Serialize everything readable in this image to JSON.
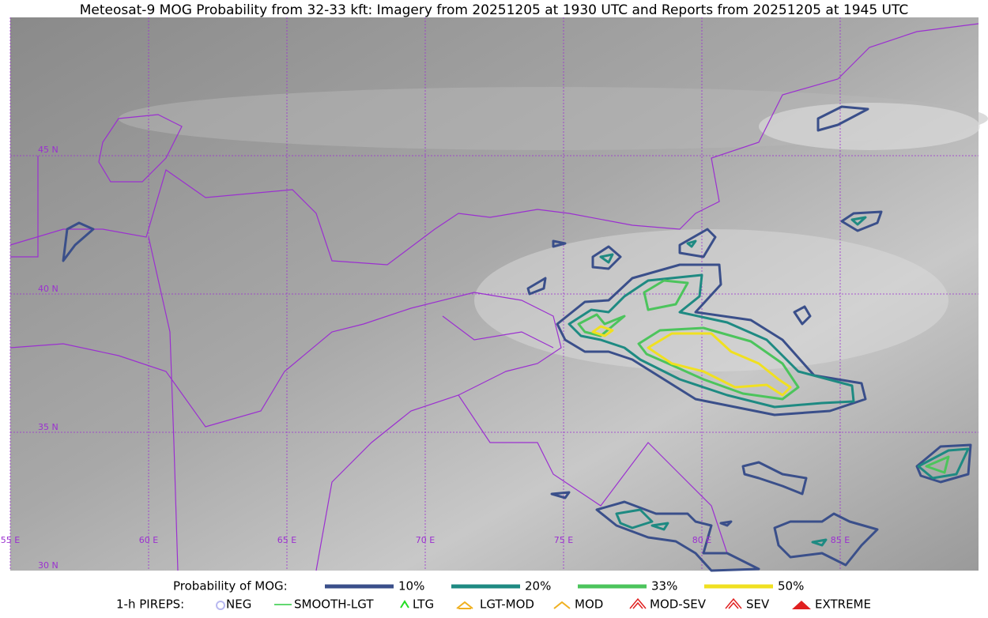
{
  "header": {
    "title": "Meteosat-9 MOG Probability from 32-33 kft: Imagery from 20251205 at 1930 UTC and Reports from 20251205 at 1945 UTC"
  },
  "map": {
    "lat_labels": [
      "45 N",
      "40 N",
      "35 N",
      "30 N"
    ],
    "lon_labels": [
      "55 E",
      "60 E",
      "65 E",
      "70 E",
      "75 E",
      "80 E",
      "85 E"
    ]
  },
  "legend": {
    "probability_title": "Probability of MOG:",
    "probability_levels": [
      {
        "label": "10%",
        "color": "#3a4f8a"
      },
      {
        "label": "20%",
        "color": "#1e8a82"
      },
      {
        "label": "33%",
        "color": "#4cc45c"
      },
      {
        "label": "50%",
        "color": "#f0e020"
      }
    ],
    "pireps_title": "1-h PIREPS:",
    "pireps": [
      "NEG",
      "SMOOTH-LGT",
      "LTG",
      "LGT-MOD",
      "MOD",
      "MOD-SEV",
      "SEV",
      "EXTREME"
    ]
  }
}
